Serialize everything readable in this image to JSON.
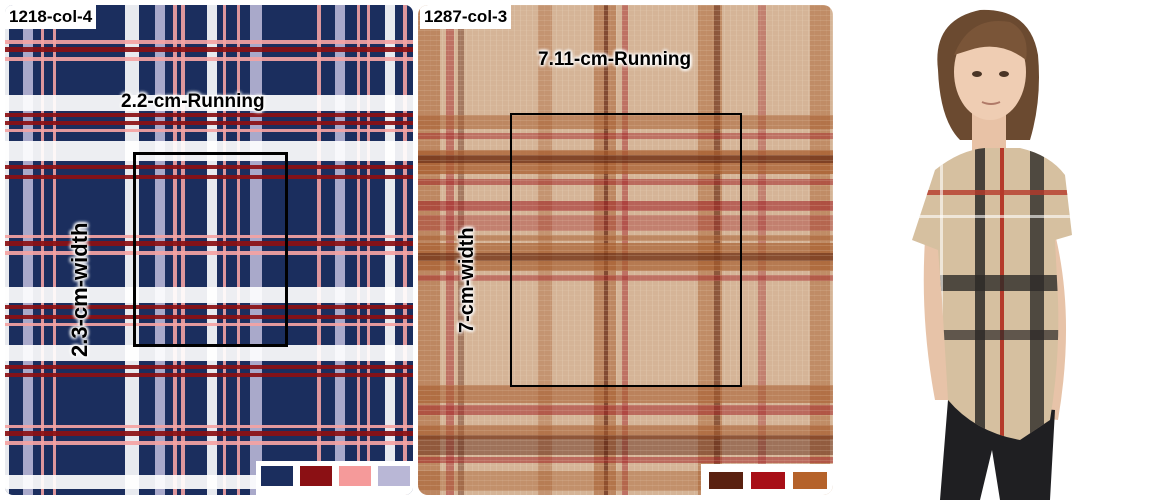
{
  "panels": [
    {
      "code": "1218-col-4",
      "running_label": "2.2-cm-Running",
      "width_label": "2.3-cm-width",
      "plaid_colors": {
        "base": "#1b2e5e",
        "dark_red": "#8b1014",
        "pink": "#f4a3a3",
        "lilac": "#b9b7d6",
        "white": "#ffffff"
      },
      "swatches": [
        "#1b2e5e",
        "#8b1014",
        "#f59a9a",
        "#b9b7d6"
      ]
    },
    {
      "code": "1287-col-3",
      "running_label": "7.11-cm-Running",
      "width_label": "7-cm-width",
      "plaid_colors": {
        "base": "#d5b497",
        "brown": "#a65a2b",
        "red": "#a11f24",
        "dark": "#5a2110",
        "light": "#e6cdb6"
      },
      "swatches": [
        "#5a2110",
        "#a80f17",
        "#b5622a"
      ]
    }
  ],
  "photo": {
    "description_icon": "model-wearing-plaid-tshirt",
    "tshirt_color": "#d6c0a0",
    "stripe_color": "#2d2a28",
    "accent_color": "#b53a2a"
  }
}
